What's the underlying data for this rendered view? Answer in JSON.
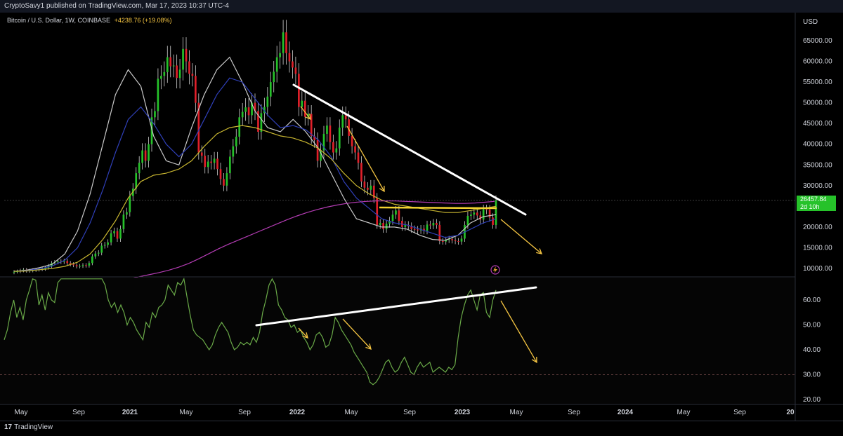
{
  "header": {
    "publisher_line": "CryptoSavy1 published on TradingView.com, Mar 17, 2023 10:37 UTC-4",
    "symbol": "Bitcoin / U.S. Dollar, 1W, COINBASE",
    "change": "+4238.76 (+19.08%)",
    "currency": "USD"
  },
  "price_tag": {
    "price": "26457.84",
    "countdown": "2d 10h",
    "color": "#26c22a"
  },
  "footer": {
    "logo_mark": "17",
    "logo_text": "TradingView"
  },
  "colors": {
    "up": "#26c22a",
    "down": "#e0202a",
    "ma_fast": "#c9c9c9",
    "ma_blue": "#2f3fb8",
    "ma_yellow": "#c8b630",
    "ma_magenta": "#b43cb4",
    "rsi": "#6aaa48",
    "trendline": "#ffffff",
    "arrow": "#f5c542"
  },
  "chart_data": [
    {
      "type": "candlestick",
      "title": "Bitcoin / U.S. Dollar, 1W, COINBASE",
      "x_axis_labels": [
        "May",
        "Sep",
        "2021",
        "May",
        "Sep",
        "2022",
        "May",
        "Sep",
        "2023",
        "May",
        "Sep",
        "2024",
        "May",
        "Sep",
        "20"
      ],
      "y_ticks": [
        "65000.00",
        "60000.00",
        "55000.00",
        "50000.00",
        "45000.00",
        "40000.00",
        "35000.00",
        "30000.00",
        "25000.00",
        "20000.00",
        "15000.00",
        "10000.00"
      ],
      "ylim": [
        9000,
        70000
      ],
      "current_price": 26457.84,
      "weekly_closes": [
        9200,
        9300,
        9500,
        9700,
        9400,
        9500,
        9600,
        9700,
        9800,
        9900,
        10200,
        10600,
        11300,
        11500,
        11700,
        11600,
        11800,
        11300,
        11000,
        10800,
        10500,
        10600,
        10800,
        10700,
        11300,
        12900,
        13600,
        13800,
        15500,
        15700,
        16300,
        18500,
        19000,
        17200,
        19500,
        23000,
        23600,
        27500,
        29300,
        33000,
        35500,
        38500,
        36000,
        40000,
        46500,
        48000,
        55800,
        56500,
        57400,
        61000,
        58800,
        59000,
        56000,
        58000,
        63000,
        60000,
        57000,
        56500,
        50000,
        38000,
        37200,
        34500,
        35800,
        35500,
        36500,
        34000,
        31600,
        30000,
        33000,
        37000,
        39500,
        41800,
        46500,
        47800,
        48900,
        47000,
        50000,
        48000,
        43000,
        47500,
        49000,
        51500,
        55000,
        57500,
        61000,
        62000,
        67000,
        62000,
        60000,
        58500,
        57000,
        49000,
        50500,
        46600,
        47300,
        42000,
        41000,
        36000,
        38500,
        42500,
        44500,
        40500,
        38000,
        39000,
        44000,
        47000,
        46000,
        42000,
        39500,
        38000,
        35500,
        31000,
        29500,
        29000,
        30000,
        27000,
        20500,
        21000,
        19500,
        20800,
        21500,
        23000,
        24000,
        21500,
        20000,
        20500,
        20200,
        19500,
        19400,
        19200,
        19600,
        19100,
        20600,
        20400,
        21000,
        20500,
        16600,
        16500,
        16900,
        17100,
        16800,
        16600,
        16500,
        17200,
        20500,
        22700,
        23000,
        23500,
        22800,
        21800,
        24300,
        24200,
        22300,
        20500,
        26457.84
      ],
      "moving_averages": [
        {
          "color": "#c9c9c9",
          "label": "",
          "values": [
            9300,
            9600,
            10200,
            11000,
            13500,
            19000,
            28000,
            40000,
            52000,
            58000,
            54000,
            42000,
            36000,
            35000,
            44000,
            52000,
            58000,
            61000,
            55000,
            48000,
            44000,
            43000,
            46000,
            43000,
            39000,
            33000,
            27000,
            22000,
            21000,
            20000,
            20000,
            19500,
            18000,
            17000,
            16800,
            18000,
            21000,
            22500,
            23000
          ]
        },
        {
          "color": "#2f3fb8",
          "label": "",
          "values": [
            9300,
            9500,
            9900,
            10600,
            12000,
            15000,
            21000,
            29000,
            38000,
            46000,
            49000,
            45000,
            40000,
            37000,
            40000,
            46000,
            52000,
            56000,
            55000,
            51000,
            47000,
            44000,
            44500,
            43500,
            41000,
            37000,
            31000,
            27000,
            24500,
            22000,
            21000,
            20500,
            19500,
            18500,
            17500,
            18000,
            19500,
            21000,
            22000
          ]
        },
        {
          "color": "#c8b630",
          "label": "",
          "values": [
            9300,
            9400,
            9700,
            10000,
            10500,
            11500,
            13500,
            17000,
            21500,
            27000,
            31000,
            32500,
            33000,
            34000,
            36000,
            39500,
            42500,
            44000,
            44500,
            44000,
            43000,
            42000,
            41500,
            40500,
            39000,
            36500,
            33000,
            30000,
            28000,
            26500,
            25500,
            25000,
            24500,
            24000,
            23500,
            23500,
            24000,
            24500,
            25000
          ]
        },
        {
          "color": "#b43cb4",
          "label": "",
          "values": [
            7000,
            7500,
            8000,
            8500,
            9000,
            9600,
            10300,
            11200,
            12300,
            13500,
            14700,
            15800,
            16800,
            17800,
            18800,
            19800,
            20800,
            21800,
            22700,
            23500,
            24200,
            24800,
            25300,
            25700,
            26000,
            26200,
            26300,
            26300,
            26300,
            26200,
            26100,
            26000,
            25900,
            25800,
            25700,
            25700,
            25800,
            26000,
            26200
          ]
        }
      ],
      "annotations": [
        "descending white trendline",
        "yellow horizontal resistance line",
        "yellow downward arrows"
      ]
    },
    {
      "type": "line",
      "title": "",
      "y_ticks": [
        "60.00",
        "50.00",
        "40.00",
        "30.00",
        "20.00"
      ],
      "ylim": [
        19,
        69
      ],
      "reference_line": 30,
      "rsi_values": [
        44,
        48,
        55,
        60,
        53,
        57,
        52,
        60,
        64,
        70,
        68,
        58,
        62,
        56,
        63,
        60,
        59,
        67,
        70,
        74,
        72,
        78,
        80,
        84,
        88,
        86,
        84,
        80,
        82,
        79,
        73,
        77,
        66,
        60,
        57,
        59,
        55,
        58,
        55,
        50,
        53,
        51,
        48,
        46,
        44,
        51,
        49,
        55,
        53,
        57,
        58,
        60,
        66,
        64,
        62,
        67,
        66,
        70,
        61,
        54,
        48,
        46,
        45,
        44,
        42,
        40,
        42,
        46,
        49,
        51,
        49,
        47,
        43,
        40,
        41,
        43,
        42,
        43,
        42,
        45,
        43,
        47,
        55,
        60,
        66,
        70,
        66,
        58,
        56,
        53,
        52,
        49,
        50,
        47,
        48,
        45,
        43,
        40,
        42,
        46,
        47,
        45,
        41,
        42,
        46,
        53,
        51,
        48,
        46,
        44,
        42,
        39,
        37,
        35,
        33,
        31,
        27,
        26,
        27,
        29,
        32,
        35,
        36,
        33,
        31,
        32,
        35,
        37,
        34,
        31,
        30,
        33,
        35,
        33,
        34,
        35,
        31,
        32,
        33,
        32,
        31,
        33,
        32,
        34,
        45,
        53,
        58,
        62,
        64,
        60,
        56,
        62,
        63,
        55,
        53,
        60,
        64
      ],
      "annotations": [
        "ascending white trendline",
        "yellow downward arrows"
      ]
    }
  ]
}
